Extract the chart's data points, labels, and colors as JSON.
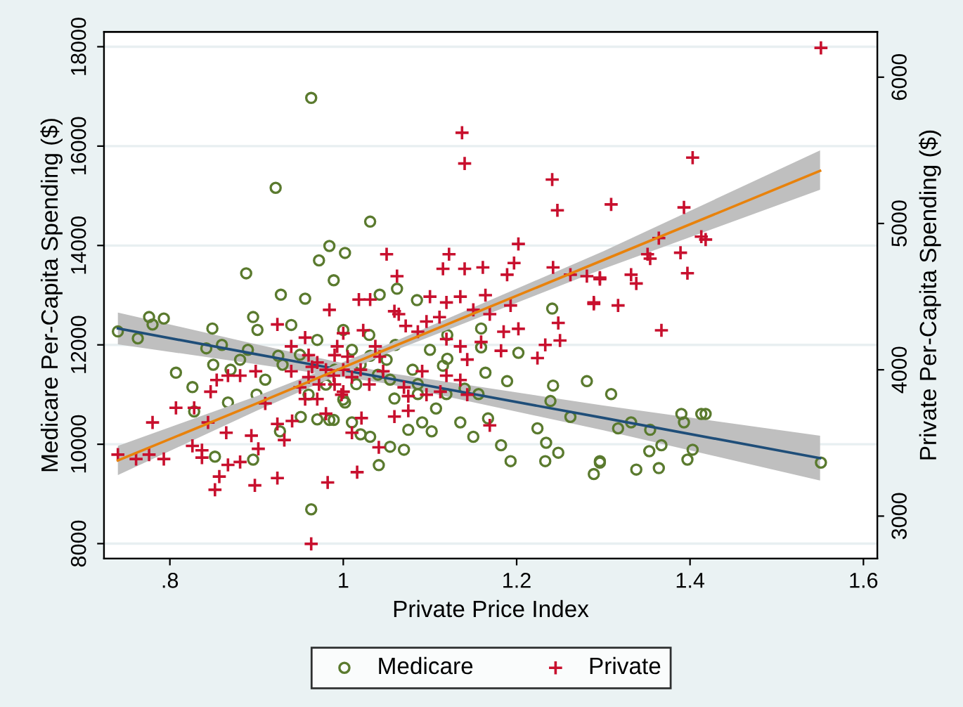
{
  "chart_data": {
    "type": "scatter",
    "xlabel": "Private Price Index",
    "ylabel": "Medicare Per-Capita Spending ($)",
    "y2label": "Private Per-Capita Spending ($)",
    "xlim": [
      0.724,
      1.616
    ],
    "xticks": [
      {
        "value": 0.8,
        "label": ".8"
      },
      1,
      1.2,
      1.4,
      1.6
    ],
    "ylim": [
      7700,
      18300
    ],
    "yticks": [
      8000,
      10000,
      12000,
      14000,
      16000,
      18000
    ],
    "y2lim": [
      2710,
      6310
    ],
    "y2ticks": [
      3000,
      4000,
      5000,
      6000
    ],
    "grid": "y",
    "legend": "bottom",
    "series": [
      {
        "name": "Medicare",
        "marker": "circle",
        "color": "#5a7a2e",
        "axis": "y",
        "x": [
          0.74,
          0.763,
          0.776,
          0.78,
          0.793,
          0.807,
          0.826,
          0.828,
          0.849,
          0.842,
          0.852,
          0.888,
          0.896,
          0.901,
          0.922,
          0.896,
          0.963,
          0.963,
          0.928,
          0.956,
          0.984,
          0.972,
          1.002,
          0.989,
          0.925,
          0.881,
          0.867,
          0.927,
          0.984,
          0.951,
          1.031,
          1.042,
          1.085,
          1.062,
          1.159,
          1.159,
          1.164,
          1.189,
          1.202,
          1.115,
          1.12,
          1.241,
          1.242,
          1.239,
          1.281,
          1.262,
          1.224,
          1.182,
          1.193,
          1.234,
          1.248,
          1.233,
          1.296,
          1.289,
          1.167,
          1.135,
          1.15,
          1.102,
          1.07,
          1.041,
          1.054,
          1.091,
          1.075,
          1.107,
          1.031,
          1.01,
          1.002,
          1.086,
          1.059,
          1.119,
          1.14,
          1.156,
          0.989,
          1.015,
          1.054,
          1.086,
          1.031,
          1.309,
          1.317,
          1.332,
          1.354,
          1.39,
          1.393,
          1.413,
          1.418,
          1.367,
          1.353,
          1.403,
          1.397,
          1.364,
          1.338,
          1.296,
          1.551,
          0.95,
          0.97,
          0.99,
          1.0,
          1.01,
          1.02,
          1.03,
          0.98,
          0.96,
          1.04,
          1.05,
          1.06,
          0.93,
          0.94,
          0.91,
          0.89,
          0.87,
          0.86,
          0.85,
          0.9,
          1.08,
          1.1,
          1.12,
          1.0,
          0.97,
          1.02
        ],
        "values": [
          12270,
          12130,
          12560,
          12410,
          12530,
          11440,
          11150,
          10660,
          12330,
          11930,
          9750,
          13440,
          12560,
          12300,
          15160,
          9690,
          16970,
          8690,
          13010,
          12930,
          13990,
          13700,
          13850,
          13300,
          11780,
          11700,
          10840,
          10260,
          10490,
          10550,
          14480,
          13010,
          12900,
          13130,
          12330,
          11950,
          11440,
          11270,
          11840,
          11580,
          11720,
          12730,
          11180,
          10870,
          11270,
          10550,
          10320,
          9980,
          9660,
          10030,
          9830,
          9660,
          9660,
          9400,
          10520,
          10440,
          10150,
          10260,
          9890,
          9580,
          9950,
          10440,
          10290,
          10720,
          10150,
          10440,
          10840,
          11010,
          10920,
          11010,
          11120,
          11010,
          10490,
          11210,
          11300,
          11210,
          11780,
          11010,
          10320,
          10440,
          10290,
          10610,
          10440,
          10610,
          10610,
          9980,
          9860,
          9890,
          9690,
          9520,
          9490,
          9630,
          9630,
          11800,
          12100,
          11500,
          12300,
          11900,
          11600,
          12200,
          11200,
          11000,
          11400,
          11700,
          12000,
          11600,
          12400,
          11300,
          11900,
          11500,
          12000,
          11600,
          11000,
          11500,
          11900,
          12200,
          10900,
          10500,
          10200
        ]
      },
      {
        "name": "Private",
        "marker": "cross",
        "color": "#c8102e",
        "axis": "y2",
        "x": [
          0.74,
          0.761,
          0.776,
          0.793,
          0.78,
          0.807,
          0.826,
          0.837,
          0.837,
          0.828,
          0.857,
          0.852,
          0.867,
          0.881,
          0.898,
          0.902,
          0.894,
          0.865,
          0.844,
          0.847,
          0.854,
          0.867,
          0.881,
          0.899,
          0.91,
          0.924,
          0.924,
          0.932,
          0.941,
          0.924,
          0.963,
          0.982,
          0.956,
          0.984,
          0.94,
          0.964,
          0.972,
          0.956,
          1.016,
          1.041,
          1.05,
          1.062,
          1.137,
          1.14,
          1.241,
          1.247,
          1.122,
          1.115,
          1.14,
          1.161,
          1.202,
          1.197,
          1.189,
          1.242,
          1.262,
          1.281,
          1.296,
          1.289,
          1.248,
          1.25,
          1.233,
          1.224,
          1.202,
          1.185,
          1.182,
          1.193,
          1.169,
          1.15,
          1.164,
          1.135,
          1.119,
          1.1,
          1.111,
          1.119,
          1.135,
          1.143,
          1.159,
          1.096,
          1.086,
          1.072,
          1.064,
          1.059,
          1.031,
          1.018,
          1.023,
          1.091,
          1.096,
          1.112,
          1.119,
          1.135,
          1.143,
          1.07,
          1.075,
          1.059,
          1.075,
          1.046,
          1.169,
          0.998,
          1.021,
          1.01,
          0.989,
          0.993,
          1.005,
          1.037,
          1.042,
          1.551,
          1.403,
          1.309,
          1.393,
          1.364,
          1.413,
          1.418,
          1.351,
          1.354,
          1.389,
          1.397,
          1.332,
          1.338,
          1.296,
          1.289,
          1.317,
          1.367,
          0.97,
          0.98,
          0.99,
          1.0,
          1.01,
          1.0,
          0.99,
          1.02,
          0.96,
          0.95,
          0.94,
          0.97,
          1.03,
          1.0,
          0.98,
          0.96
        ],
        "values": [
          3420,
          3390,
          3420,
          3390,
          3640,
          3740,
          3480,
          3450,
          3400,
          3740,
          3270,
          3180,
          3350,
          3370,
          3210,
          3460,
          3550,
          3570,
          3640,
          3850,
          3930,
          3960,
          3960,
          3990,
          3770,
          3260,
          3630,
          3520,
          3650,
          4310,
          2810,
          3230,
          4220,
          4410,
          4160,
          4020,
          3900,
          3800,
          3300,
          3470,
          4790,
          4640,
          5620,
          5410,
          5300,
          5090,
          4790,
          4690,
          4690,
          4700,
          4860,
          4730,
          4650,
          4700,
          4650,
          4640,
          4630,
          4460,
          4320,
          4200,
          4170,
          4080,
          4280,
          4260,
          4130,
          4440,
          4380,
          4410,
          4510,
          4500,
          4460,
          4500,
          4360,
          4210,
          4160,
          4070,
          4190,
          4330,
          4260,
          4300,
          4380,
          4400,
          4480,
          4480,
          4270,
          3990,
          3830,
          3850,
          3960,
          3930,
          3830,
          3880,
          3720,
          3680,
          3820,
          3990,
          3620,
          3830,
          3670,
          3570,
          3960,
          4160,
          4090,
          4160,
          4090,
          6200,
          5450,
          5130,
          5110,
          4900,
          4910,
          4890,
          4790,
          4760,
          4800,
          4660,
          4650,
          4590,
          4620,
          4450,
          4440,
          4270,
          4050,
          4000,
          3900,
          4000,
          3950,
          3850,
          4100,
          4000,
          3950,
          3880,
          3990,
          3800,
          3900,
          4250,
          3700,
          4100
        ]
      },
      {
        "type": "line",
        "marker": "none",
        "color": "#1f4e79",
        "axis": "y",
        "x": [
          0.74,
          0.9,
          1.05,
          1.3,
          1.55
        ],
        "values": [
          12330,
          11810,
          11330,
          10530,
          9720
        ],
        "lower": [
          12010,
          11610,
          11220,
          10280,
          9270
        ],
        "upper": [
          12650,
          12010,
          11440,
          10780,
          10170
        ]
      },
      {
        "type": "line",
        "marker": "none",
        "color": "#e8820c",
        "axis": "y2",
        "x": [
          0.74,
          0.9,
          1.05,
          1.3,
          1.55
        ],
        "values": [
          3380,
          3770,
          4140,
          4750,
          5360
        ],
        "lower": [
          3280,
          3720,
          4110,
          4690,
          5230
        ],
        "upper": [
          3480,
          3820,
          4170,
          4810,
          5500
        ]
      }
    ]
  }
}
